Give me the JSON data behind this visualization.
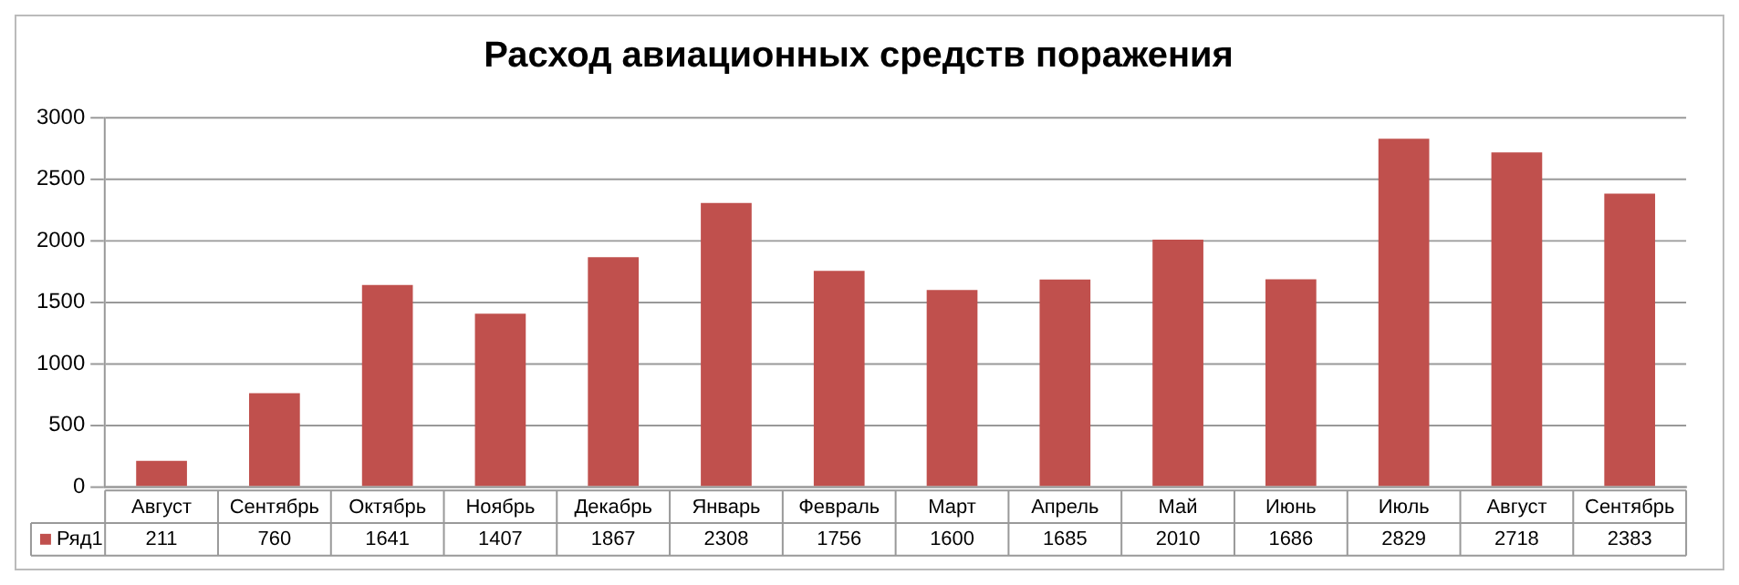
{
  "chart_data": {
    "type": "bar",
    "title": "Расход авиационных средств поражения",
    "categories": [
      "Август",
      "Сентябрь",
      "Октябрь",
      "Ноябрь",
      "Декабрь",
      "Январь",
      "Февраль",
      "Март",
      "Апрель",
      "Май",
      "Июнь",
      "Июль",
      "Август",
      "Сентябрь"
    ],
    "series": [
      {
        "name": "Ряд1",
        "color": "#c0504d",
        "values": [
          211,
          760,
          1641,
          1407,
          1867,
          2308,
          1756,
          1600,
          1685,
          2010,
          1686,
          2829,
          2718,
          2383
        ]
      }
    ],
    "ylim": [
      0,
      3000
    ],
    "yticks": [
      0,
      500,
      1000,
      1500,
      2000,
      2500,
      3000
    ],
    "grid": "y",
    "data_labels": true
  }
}
